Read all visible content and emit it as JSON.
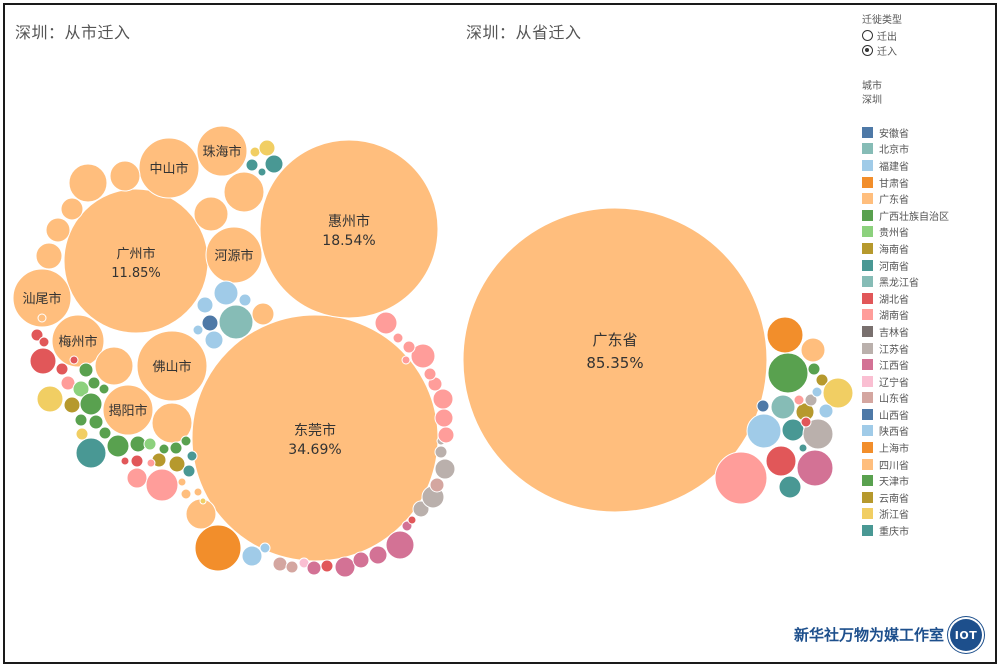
{
  "titles": {
    "left": "深圳：从市迁入",
    "right": "深圳：从省迁入"
  },
  "filter": {
    "heading": "迁徙类型",
    "options": [
      {
        "label": "迁出",
        "selected": false
      },
      {
        "label": "迁入",
        "selected": true
      }
    ]
  },
  "city_filter": {
    "heading": "城市",
    "value": "深圳"
  },
  "legend": [
    {
      "label": "安徽省",
      "color": "#4e79a7"
    },
    {
      "label": "北京市",
      "color": "#86bcb6"
    },
    {
      "label": "福建省",
      "color": "#a0cbe8"
    },
    {
      "label": "甘肃省",
      "color": "#f28e2b"
    },
    {
      "label": "广东省",
      "color": "#ffbe7d"
    },
    {
      "label": "广西壮族自治区",
      "color": "#59a14f"
    },
    {
      "label": "贵州省",
      "color": "#8cd17d"
    },
    {
      "label": "海南省",
      "color": "#b6992d"
    },
    {
      "label": "河南省",
      "color": "#499894"
    },
    {
      "label": "黑龙江省",
      "color": "#86bcb6"
    },
    {
      "label": "湖北省",
      "color": "#e15759"
    },
    {
      "label": "湖南省",
      "color": "#ff9d9a"
    },
    {
      "label": "吉林省",
      "color": "#79706e"
    },
    {
      "label": "江苏省",
      "color": "#bab0ac"
    },
    {
      "label": "江西省",
      "color": "#d37295"
    },
    {
      "label": "辽宁省",
      "color": "#fabfd2"
    },
    {
      "label": "山东省",
      "color": "#d4a6a0"
    },
    {
      "label": "山西省",
      "color": "#4e79a7"
    },
    {
      "label": "陕西省",
      "color": "#a0cbe8"
    },
    {
      "label": "上海市",
      "color": "#f28e2b"
    },
    {
      "label": "四川省",
      "color": "#ffbe7d"
    },
    {
      "label": "天津市",
      "color": "#59a14f"
    },
    {
      "label": "云南省",
      "color": "#b6992d"
    },
    {
      "label": "浙江省",
      "color": "#f1ce63"
    },
    {
      "label": "重庆市",
      "color": "#499894"
    }
  ],
  "footer": {
    "brand": "新华社万物为媒工作室",
    "logo_text": "IOT"
  },
  "chart_data": [
    {
      "type": "packed-bubble",
      "title": "深圳：从市迁入",
      "labeled_bubbles": [
        {
          "name": "东莞市",
          "value": "34.69%",
          "province": "广东省"
        },
        {
          "name": "惠州市",
          "value": "18.54%",
          "province": "广东省"
        },
        {
          "name": "广州市",
          "value": "11.85%",
          "province": "广东省"
        },
        {
          "name": "珠海市",
          "province": "广东省"
        },
        {
          "name": "中山市",
          "province": "广东省"
        },
        {
          "name": "河源市",
          "province": "广东省"
        },
        {
          "name": "汕尾市",
          "province": "广东省"
        },
        {
          "name": "梅州市",
          "province": "广东省"
        },
        {
          "name": "佛山市",
          "province": "广东省"
        },
        {
          "name": "揭阳市",
          "province": "广东省"
        }
      ]
    },
    {
      "type": "packed-bubble",
      "title": "深圳：从省迁入",
      "labeled_bubbles": [
        {
          "name": "广东省",
          "value": "85.35%"
        }
      ]
    }
  ]
}
